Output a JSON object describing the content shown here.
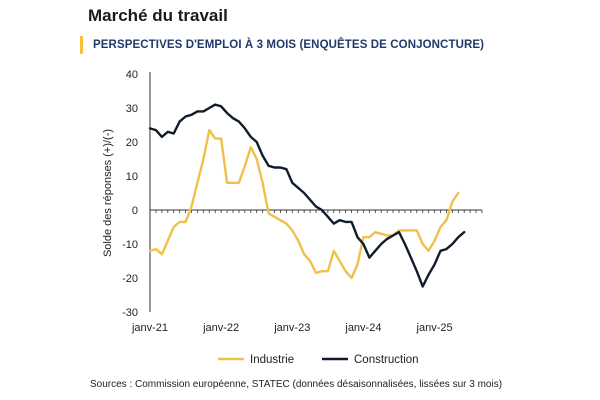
{
  "header": {
    "title": "Marché du travail",
    "subtitle": "PERSPECTIVES D'EMPLOI À 3 MOIS (ENQUÊTES DE CONJONCTURE)"
  },
  "footer": {
    "source": "Sources : Commission européenne, STATEC (données désaisonnalisées, lissées sur 3 mois)"
  },
  "chart_data": {
    "type": "line",
    "title": "",
    "xlabel": "",
    "ylabel": "Solde des réponses (+)/(-)",
    "ylim": [
      -30,
      40
    ],
    "yticks": [
      -30,
      -20,
      -10,
      0,
      10,
      20,
      30,
      40
    ],
    "xlim": [
      0,
      55
    ],
    "xticks": [
      {
        "x": 0,
        "label": "janv-21"
      },
      {
        "x": 12,
        "label": "janv-22"
      },
      {
        "x": 24,
        "label": "janv-23"
      },
      {
        "x": 36,
        "label": "janv-24"
      },
      {
        "x": 48,
        "label": "janv-25"
      }
    ],
    "grid": false,
    "legend": "bottom",
    "x": [
      0,
      1,
      2,
      3,
      4,
      5,
      6,
      7,
      8,
      9,
      10,
      11,
      12,
      13,
      14,
      15,
      16,
      17,
      18,
      19,
      20,
      21,
      22,
      23,
      24,
      25,
      26,
      27,
      28,
      29,
      30,
      31,
      32,
      33,
      34,
      35,
      36,
      37,
      38,
      39,
      40,
      41,
      42,
      43,
      44,
      45,
      46,
      47,
      48,
      49,
      50,
      51,
      52,
      53,
      54,
      55
    ],
    "series": [
      {
        "name": "Industrie",
        "color": "#f0c04a",
        "values": [
          -12,
          -11.5,
          -13,
          -9,
          -5,
          -3.5,
          -3.5,
          1,
          8,
          15,
          23.5,
          21,
          21,
          8,
          8,
          8,
          13,
          18.5,
          15,
          8,
          -1,
          -2,
          -3,
          -4,
          -6,
          -9,
          -13,
          -15,
          -18.5,
          -18,
          -18,
          -12,
          -15,
          -18,
          -20,
          -16,
          -8,
          -8,
          -6.5,
          -7,
          -7.5,
          -7.5,
          -6,
          -6,
          -6,
          -6,
          -10,
          -12,
          -9,
          -5,
          -3,
          2.5,
          5,
          null,
          null,
          null
        ]
      },
      {
        "name": "Construction",
        "color": "#111c2a",
        "values": [
          24,
          23.5,
          21.5,
          23,
          22.5,
          26,
          27.5,
          28,
          29,
          29,
          30,
          31,
          30.5,
          28.5,
          27,
          26,
          24,
          21.5,
          20,
          16,
          13,
          12.5,
          12.5,
          12,
          8,
          6.5,
          5,
          3,
          1,
          0,
          -2,
          -4,
          -3,
          -3.5,
          -3.5,
          -8,
          -10,
          -14,
          -12,
          -10,
          -8.5,
          -7.5,
          -6.5,
          -10,
          -14,
          -18,
          -22.5,
          -19,
          -16,
          -12,
          -11.5,
          -10,
          -8,
          -6.5,
          null,
          null
        ]
      }
    ]
  }
}
